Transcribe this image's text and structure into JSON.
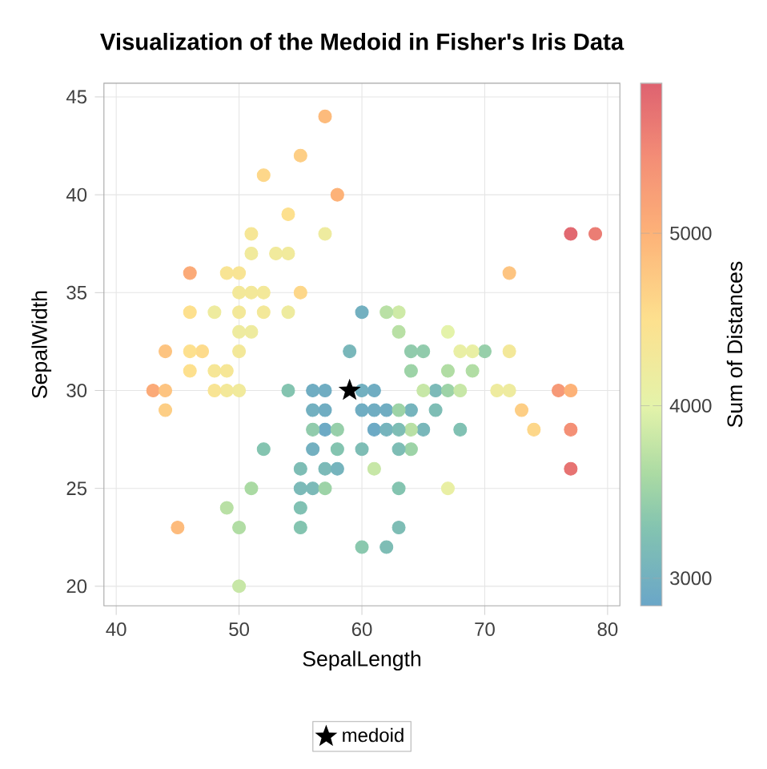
{
  "chart_data": {
    "type": "scatter",
    "title": "Visualization of the Medoid in Fisher's Iris Data",
    "xlabel": "SepalLength",
    "ylabel": "SepalWidth",
    "clabel": "Sum of Distances",
    "xlim": [
      39,
      81
    ],
    "ylim": [
      19,
      45.7
    ],
    "xticks": [
      40,
      50,
      60,
      70,
      80
    ],
    "yticks": [
      20,
      25,
      30,
      35,
      40,
      45
    ],
    "clim": [
      2840,
      5870
    ],
    "cticks": [
      3000,
      4000,
      5000
    ],
    "grid": true,
    "legend": "bottom",
    "marker": "circle",
    "series": [
      {
        "x": [
          51,
          49,
          47,
          46,
          50,
          54,
          46,
          50,
          44,
          49,
          54,
          48,
          48,
          43,
          58,
          57,
          57,
          51,
          54,
          51,
          46,
          51,
          52,
          52,
          48,
          52,
          55,
          50,
          55,
          49,
          44,
          50,
          45,
          44,
          46,
          53,
          50,
          50,
          70,
          64,
          69,
          55,
          65,
          57,
          63,
          49,
          66,
          52,
          50,
          60,
          61,
          56,
          67,
          56,
          58,
          62,
          56,
          59,
          61,
          63,
          64,
          66,
          68,
          67,
          60,
          57,
          55,
          60,
          54,
          60,
          63,
          55,
          55,
          61,
          58,
          50,
          56,
          57,
          57,
          62,
          51,
          71,
          63,
          65,
          76,
          73,
          67,
          72,
          65,
          64,
          68,
          57,
          58,
          77,
          77,
          69,
          56,
          77,
          63,
          67,
          72,
          62,
          64,
          72,
          74,
          79,
          63,
          61,
          77,
          63,
          64,
          60,
          68,
          62
        ],
        "values": [
          35,
          30,
          32,
          31,
          36,
          39,
          34,
          34,
          29,
          31,
          37,
          34,
          30,
          30,
          40,
          44,
          38,
          38,
          34,
          37,
          36,
          33,
          35,
          34,
          31,
          41,
          42,
          32,
          35,
          36,
          30,
          35,
          23,
          32,
          32,
          37,
          33,
          30,
          32,
          32,
          31,
          23,
          28,
          28,
          33,
          24,
          29,
          27,
          20,
          22,
          29,
          29,
          31,
          30,
          27,
          22,
          25,
          32,
          28,
          25,
          29,
          30,
          28,
          30,
          29,
          26,
          24,
          27,
          30,
          34,
          23,
          25,
          26,
          30,
          26,
          23,
          27,
          30,
          29,
          29,
          25,
          30,
          29,
          30,
          30,
          29,
          25,
          36,
          32,
          27,
          30,
          25,
          28,
          38,
          26,
          32,
          28,
          28,
          27,
          33,
          32,
          28,
          28,
          30,
          28,
          38,
          28,
          26,
          30,
          34,
          31,
          30,
          32,
          34
        ],
        "cvalues": [
          4300,
          4300,
          4550,
          4500,
          4400,
          4500,
          4500,
          4300,
          4700,
          4350,
          4250,
          4200,
          4400,
          5100,
          5000,
          4900,
          4200,
          4350,
          4200,
          4250,
          5100,
          4200,
          4300,
          4300,
          4350,
          4600,
          4700,
          4300,
          4600,
          4400,
          4800,
          4300,
          4900,
          4800,
          4500,
          4250,
          4200,
          4250,
          3450,
          3400,
          3650,
          3300,
          3100,
          2900,
          3700,
          3700,
          3200,
          3300,
          3800,
          3350,
          2950,
          3000,
          3650,
          2950,
          3300,
          3200,
          3150,
          3100,
          2900,
          3300,
          3050,
          3150,
          3250,
          3500,
          2950,
          3150,
          3250,
          3200,
          3300,
          3000,
          3200,
          3150,
          3200,
          2950,
          3050,
          3650,
          3000,
          2950,
          2950,
          2950,
          3600,
          4200,
          3500,
          3800,
          5300,
          4700,
          4100,
          4800,
          3400,
          3500,
          3800,
          3500,
          3450,
          5800,
          5700,
          4100,
          3400,
          5400,
          3200,
          4000,
          4300,
          3050,
          3700,
          4200,
          4600,
          5600,
          3200,
          3800,
          5000,
          3850,
          3500,
          3000,
          4100,
          3700
        ],
        "colors": [
          "#f3e899",
          "#f3e899",
          "#fddb8c",
          "#fde08e",
          "#f8e494",
          "#fde08e",
          "#fde08e",
          "#f3e899",
          "#fdce85",
          "#f6e696",
          "#f1ea9c",
          "#eeeb9f",
          "#f8e494",
          "#fbaa78",
          "#fdb278",
          "#fdbb7c",
          "#eeeb9f",
          "#f6e696",
          "#eeeb9f",
          "#f1ea9c",
          "#fbaa78",
          "#eeeb9f",
          "#f3e899",
          "#f3e899",
          "#f6e696",
          "#fdd78a",
          "#fdce85",
          "#f3e899",
          "#fdd78a",
          "#f8e494",
          "#fdc481",
          "#f3e899",
          "#fdbb7c",
          "#fdc481",
          "#fde08e",
          "#f1ea9c",
          "#eeeb9f",
          "#f1ea9c",
          "#97cfaa",
          "#91cbac",
          "#b1dda4",
          "#84c4b0",
          "#79b7ba",
          "#6daac5",
          "#b9e0a5",
          "#b9e0a5",
          "#7ebdb5",
          "#84c4b0",
          "#c7e7a7",
          "#8ac8ae",
          "#70adc2",
          "#73b0c0",
          "#b1dda4",
          "#70adc2",
          "#84c4b0",
          "#7ebdb5",
          "#7cbab8",
          "#79b7ba",
          "#6daac5",
          "#84c4b0",
          "#76b4bd",
          "#7cbab8",
          "#81c1b3",
          "#9dd3a7",
          "#70adc2",
          "#7cbab8",
          "#81c1b3",
          "#7ebdb5",
          "#84c4b0",
          "#73b0c0",
          "#7ebdb5",
          "#7cbab8",
          "#7ebdb5",
          "#70adc2",
          "#76b4bd",
          "#b1dda4",
          "#73b0c0",
          "#70adc2",
          "#70adc2",
          "#70adc2",
          "#aadaa3",
          "#eeeb9f",
          "#9dd3a7",
          "#c7e7a7",
          "#f69977",
          "#fdce85",
          "#e9efa4",
          "#fdc481",
          "#91cbac",
          "#9dd3a7",
          "#c7e7a7",
          "#9dd3a7",
          "#97cfaa",
          "#e26971",
          "#e77372",
          "#e9efa4",
          "#91cbac",
          "#f49076",
          "#7ebdb5",
          "#e4f3aa",
          "#f3e899",
          "#76b4bd",
          "#b9e0a5",
          "#eeeb9f",
          "#fdd78a",
          "#eb7d74",
          "#7ebdb5",
          "#c7e7a7",
          "#fdb278",
          "#ceeaa7",
          "#9dd3a7",
          "#73b0c0",
          "#e9efa4",
          "#b9e0a5"
        ]
      },
      {
        "name": "medoid",
        "x": [
          59
        ],
        "values": [
          30
        ],
        "color": "#000000",
        "marker": "star"
      }
    ]
  }
}
